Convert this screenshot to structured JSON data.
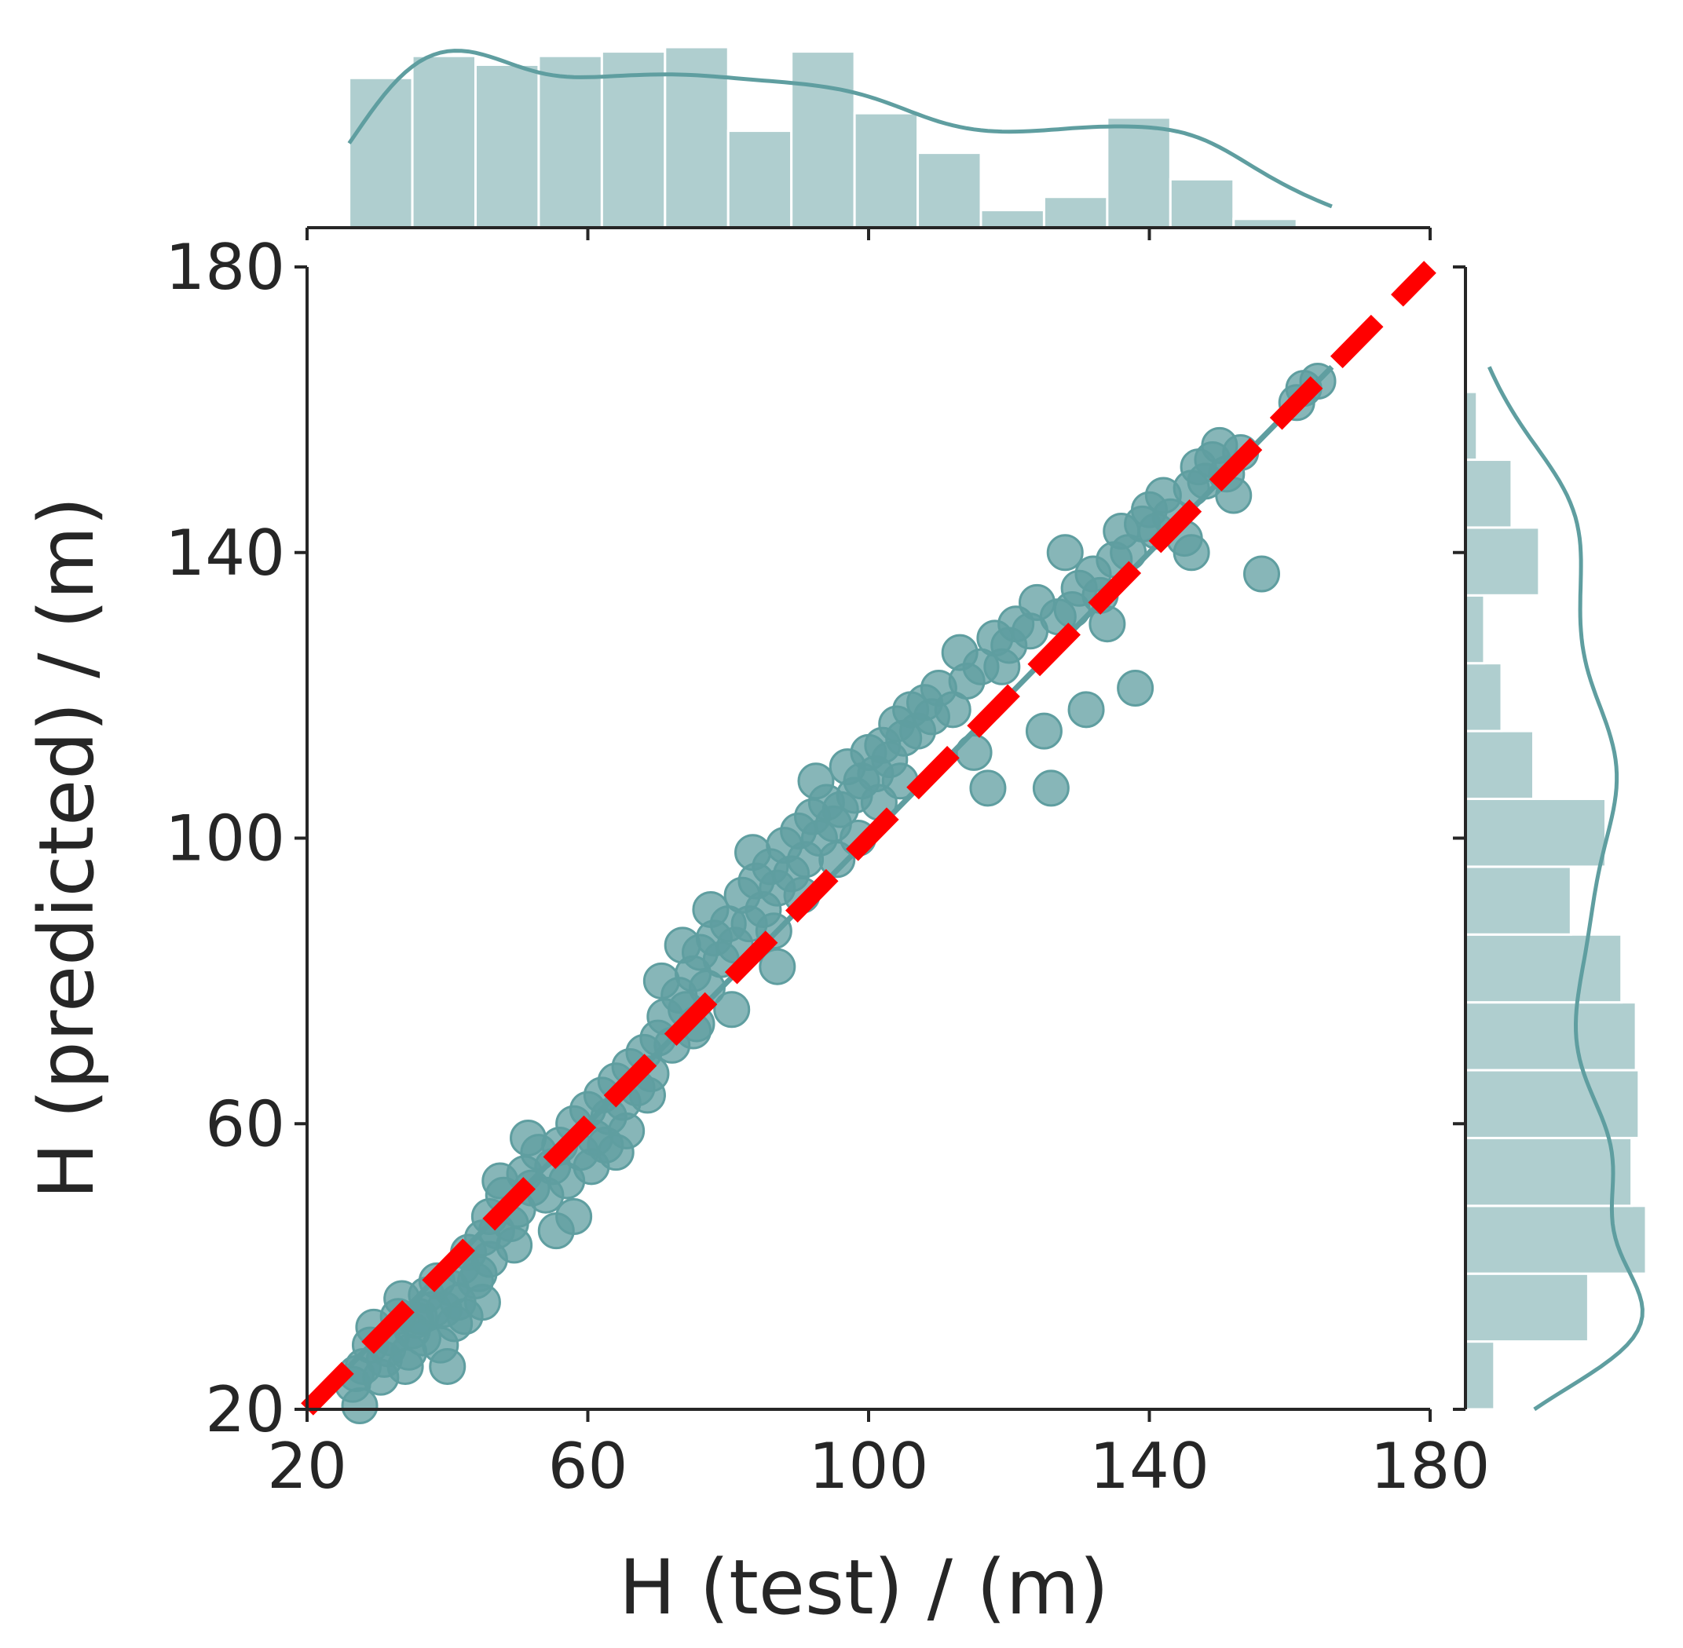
{
  "chart_data": {
    "type": "scatter",
    "subtype": "jointplot with marginal histograms and KDE curves",
    "xlabel": "H (test) / (m)",
    "ylabel": "H (predicted) / (m)",
    "xlim": [
      20,
      180
    ],
    "ylim": [
      20,
      180
    ],
    "xticks": [
      "20",
      "60",
      "100",
      "140",
      "180"
    ],
    "yticks": [
      "20",
      "60",
      "100",
      "140",
      "180"
    ],
    "grid": false,
    "colors": {
      "points": "#5f9ea0",
      "identity_line": "#ff0000",
      "axes": "#262626"
    },
    "identity_line": {
      "style": "dashed",
      "from": [
        20,
        20
      ],
      "to": [
        180,
        180
      ]
    },
    "fit_line": {
      "from": [
        26,
        26
      ],
      "to": [
        166,
        166
      ]
    },
    "points": [
      [
        27.5,
        20.5
      ],
      [
        26.5,
        23.5
      ],
      [
        28,
        26
      ],
      [
        29,
        29
      ],
      [
        27,
        25
      ],
      [
        31,
        27
      ],
      [
        29.5,
        31.5
      ],
      [
        32,
        30
      ],
      [
        30.5,
        24.5
      ],
      [
        33,
        33
      ],
      [
        31.5,
        28.5
      ],
      [
        34,
        26
      ],
      [
        35,
        31
      ],
      [
        33.5,
        35.5
      ],
      [
        36,
        33
      ],
      [
        34.5,
        28
      ],
      [
        37,
        36
      ],
      [
        35.5,
        32.5
      ],
      [
        38,
        34
      ],
      [
        36.5,
        30
      ],
      [
        39,
        29
      ],
      [
        40,
        26
      ],
      [
        38.5,
        38
      ],
      [
        39.5,
        34
      ],
      [
        41,
        32
      ],
      [
        40.5,
        37
      ],
      [
        42,
        40
      ],
      [
        41.5,
        35
      ],
      [
        43,
        42
      ],
      [
        44,
        38
      ],
      [
        42.5,
        33
      ],
      [
        45,
        44
      ],
      [
        44.5,
        39
      ],
      [
        46,
        47
      ],
      [
        47,
        45
      ],
      [
        46,
        41
      ],
      [
        48,
        50
      ],
      [
        49,
        46
      ],
      [
        47.5,
        52
      ],
      [
        50,
        48
      ],
      [
        51,
        53
      ],
      [
        49.5,
        43
      ],
      [
        52,
        51
      ],
      [
        53,
        56
      ],
      [
        54,
        50
      ],
      [
        51.5,
        58
      ],
      [
        55,
        54
      ],
      [
        56,
        57
      ],
      [
        57,
        52
      ],
      [
        55.5,
        45
      ],
      [
        58,
        60
      ],
      [
        59,
        56
      ],
      [
        60,
        62
      ],
      [
        61,
        58
      ],
      [
        60.5,
        54
      ],
      [
        62,
        64
      ],
      [
        63,
        61
      ],
      [
        64,
        66
      ],
      [
        62.5,
        57
      ],
      [
        65,
        63
      ],
      [
        66,
        68
      ],
      [
        67,
        65
      ],
      [
        65.5,
        59
      ],
      [
        68,
        70
      ],
      [
        69,
        67
      ],
      [
        70,
        72
      ],
      [
        68.5,
        64
      ],
      [
        71,
        75
      ],
      [
        72,
        71
      ],
      [
        73,
        78
      ],
      [
        70.5,
        80
      ],
      [
        74,
        76
      ],
      [
        75,
        81
      ],
      [
        73.5,
        85
      ],
      [
        76,
        84
      ],
      [
        77,
        79
      ],
      [
        75.5,
        74
      ],
      [
        78,
        86
      ],
      [
        79,
        83
      ],
      [
        80,
        88
      ],
      [
        77.5,
        90
      ],
      [
        81,
        85
      ],
      [
        82,
        92
      ],
      [
        83,
        88
      ],
      [
        80.5,
        76
      ],
      [
        84,
        94
      ],
      [
        85,
        90
      ],
      [
        86,
        96
      ],
      [
        83.5,
        98
      ],
      [
        87,
        93
      ],
      [
        88,
        99
      ],
      [
        89,
        95
      ],
      [
        86.5,
        87
      ],
      [
        90,
        101
      ],
      [
        91,
        97
      ],
      [
        92,
        103
      ],
      [
        90.5,
        92
      ],
      [
        93,
        100
      ],
      [
        94,
        105
      ],
      [
        95,
        102
      ],
      [
        92.5,
        108
      ],
      [
        96,
        104
      ],
      [
        97,
        110
      ],
      [
        98,
        106
      ],
      [
        95.5,
        97
      ],
      [
        99,
        108
      ],
      [
        100,
        112
      ],
      [
        101,
        109
      ],
      [
        98.5,
        100
      ],
      [
        102,
        113
      ],
      [
        103,
        111
      ],
      [
        104,
        116
      ],
      [
        101.5,
        105
      ],
      [
        105,
        114
      ],
      [
        106,
        118
      ],
      [
        107,
        115
      ],
      [
        104.5,
        108
      ],
      [
        108,
        119
      ],
      [
        109,
        117
      ],
      [
        110,
        121
      ],
      [
        112,
        118
      ],
      [
        114,
        122
      ],
      [
        113,
        126
      ],
      [
        116,
        124
      ],
      [
        115,
        112
      ],
      [
        118,
        128
      ],
      [
        119,
        124
      ],
      [
        117,
        107
      ],
      [
        120,
        127
      ],
      [
        121,
        130
      ],
      [
        123,
        129
      ],
      [
        124,
        133
      ],
      [
        125,
        115
      ],
      [
        127,
        131
      ],
      [
        126,
        107
      ],
      [
        128,
        140
      ],
      [
        129,
        132
      ],
      [
        130,
        135
      ],
      [
        131,
        118
      ],
      [
        132,
        137
      ],
      [
        133,
        134
      ],
      [
        135,
        139
      ],
      [
        136,
        143
      ],
      [
        134,
        130
      ],
      [
        137,
        140
      ],
      [
        138,
        121
      ],
      [
        139,
        144
      ],
      [
        140,
        146
      ],
      [
        141,
        143
      ],
      [
        142,
        148
      ],
      [
        143,
        145
      ],
      [
        145,
        142
      ],
      [
        146,
        149
      ],
      [
        147,
        152
      ],
      [
        148,
        150
      ],
      [
        149,
        153
      ],
      [
        150,
        155
      ],
      [
        151,
        151
      ],
      [
        153,
        154
      ],
      [
        156,
        137
      ],
      [
        161,
        161
      ],
      [
        162,
        163
      ],
      [
        164,
        164
      ],
      [
        146,
        140
      ],
      [
        152,
        148
      ],
      [
        87,
        82
      ],
      [
        75,
        73
      ],
      [
        64,
        56
      ],
      [
        58,
        47
      ],
      [
        45,
        35
      ]
    ],
    "top_histogram": {
      "bins": [
        [
          26,
          35
        ],
        [
          35,
          44
        ],
        [
          44,
          53
        ],
        [
          53,
          62
        ],
        [
          62,
          71
        ],
        [
          71,
          80
        ],
        [
          80,
          89
        ],
        [
          89,
          98
        ],
        [
          98,
          107
        ],
        [
          107,
          116
        ],
        [
          116,
          125
        ],
        [
          125,
          134
        ],
        [
          134,
          143
        ],
        [
          143,
          152
        ],
        [
          152,
          161
        ],
        [
          161,
          166
        ]
      ],
      "counts": [
        17,
        19.5,
        18.5,
        19.5,
        20,
        20.5,
        11,
        20,
        13,
        8.5,
        2,
        3.5,
        12.5,
        5.5,
        1,
        0
      ]
    },
    "right_histogram": {
      "bins": [
        [
          20,
          29.5
        ],
        [
          29.5,
          39
        ],
        [
          39,
          48.5
        ],
        [
          48.5,
          58
        ],
        [
          58,
          67.5
        ],
        [
          67.5,
          77
        ],
        [
          77,
          86.5
        ],
        [
          86.5,
          96
        ],
        [
          96,
          105.5
        ],
        [
          105.5,
          115
        ],
        [
          115,
          124.5
        ],
        [
          124.5,
          134
        ],
        [
          134,
          143.5
        ],
        [
          143.5,
          153
        ],
        [
          153,
          162.5
        ],
        [
          162.5,
          166
        ]
      ],
      "counts": [
        2,
        8.5,
        12.5,
        11.5,
        12,
        11.8,
        10.8,
        7.3,
        9.7,
        4.7,
        2.5,
        1.3,
        5.1,
        3.2,
        0.8,
        0
      ]
    }
  }
}
